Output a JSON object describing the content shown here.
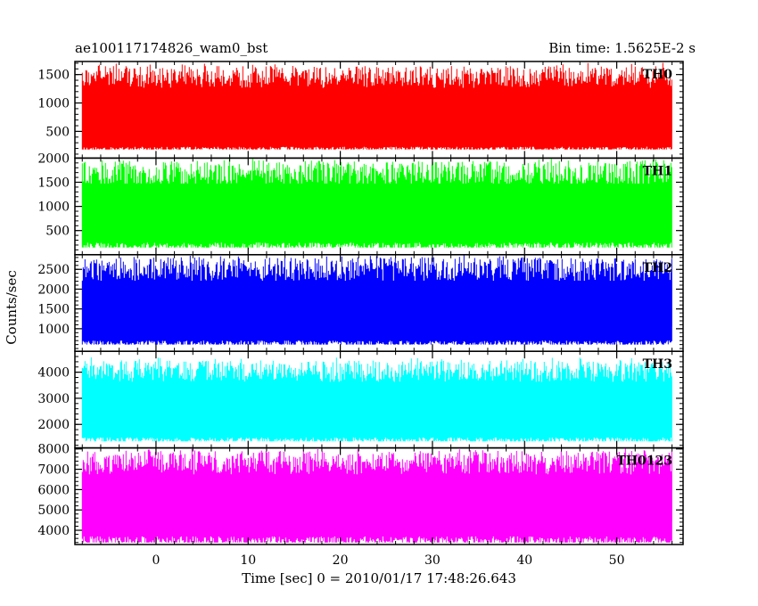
{
  "header": {
    "title": "ae100117174826_wam0_bst",
    "bin_time": "Bin time: 1.5625E-2 s"
  },
  "chart_data": {
    "type": "line",
    "ylabel": "Counts/sec",
    "xlabel": "Time [sec] 0 = 2010/01/17 17:48:26.643",
    "x_range": [
      -8,
      56
    ],
    "xlim": [
      -8.8,
      57.2
    ],
    "x_ticks": [
      0,
      10,
      20,
      30,
      40,
      50
    ],
    "x_tick_labels": [
      "0",
      "10",
      "20",
      "30",
      "40",
      "50"
    ],
    "bin_time_s": 0.015625,
    "panels": [
      {
        "name": "TH0",
        "color": "#ff0000",
        "ylim": [
          30,
          1730
        ],
        "y_ticks": [
          500,
          1000,
          1500
        ],
        "y_tick_labels": [
          "500",
          "1000",
          "1500"
        ],
        "typical_range": [
          180,
          1730
        ],
        "summary": {
          "median": 950,
          "low": 230,
          "high": 1650
        }
      },
      {
        "name": "TH1",
        "color": "#00ff00",
        "ylim": [
          0,
          2000
        ],
        "y_ticks": [
          500,
          1000,
          1500,
          2000
        ],
        "y_tick_labels": [
          "500",
          "1000",
          "1500",
          "2000"
        ],
        "typical_range": [
          150,
          2000
        ],
        "summary": {
          "median": 1000,
          "low": 250,
          "high": 1950
        }
      },
      {
        "name": "TH2",
        "color": "#0000ff",
        "ylim": [
          430,
          2870
        ],
        "y_ticks": [
          1000,
          1500,
          2000,
          2500
        ],
        "y_tick_labels": [
          "1000",
          "1500",
          "2000",
          "2500"
        ],
        "typical_range": [
          600,
          2870
        ],
        "summary": {
          "median": 1700,
          "low": 700,
          "high": 2800
        }
      },
      {
        "name": "TH3",
        "color": "#00ffff",
        "ylim": [
          1100,
          4800
        ],
        "y_ticks": [
          2000,
          3000,
          4000
        ],
        "y_tick_labels": [
          "2000",
          "3000",
          "4000"
        ],
        "typical_range": [
          1350,
          4600
        ],
        "summary": {
          "median": 2950,
          "low": 1500,
          "high": 4450
        }
      },
      {
        "name": "TH0123",
        "color": "#ff00ff",
        "ylim": [
          3300,
          8050
        ],
        "y_ticks": [
          4000,
          5000,
          6000,
          7000,
          8000
        ],
        "y_tick_labels": [
          "4000",
          "5000",
          "6000",
          "7000",
          "8000"
        ],
        "typical_range": [
          3400,
          8050
        ],
        "summary": {
          "median": 5800,
          "low": 3700,
          "high": 7900
        }
      }
    ]
  }
}
